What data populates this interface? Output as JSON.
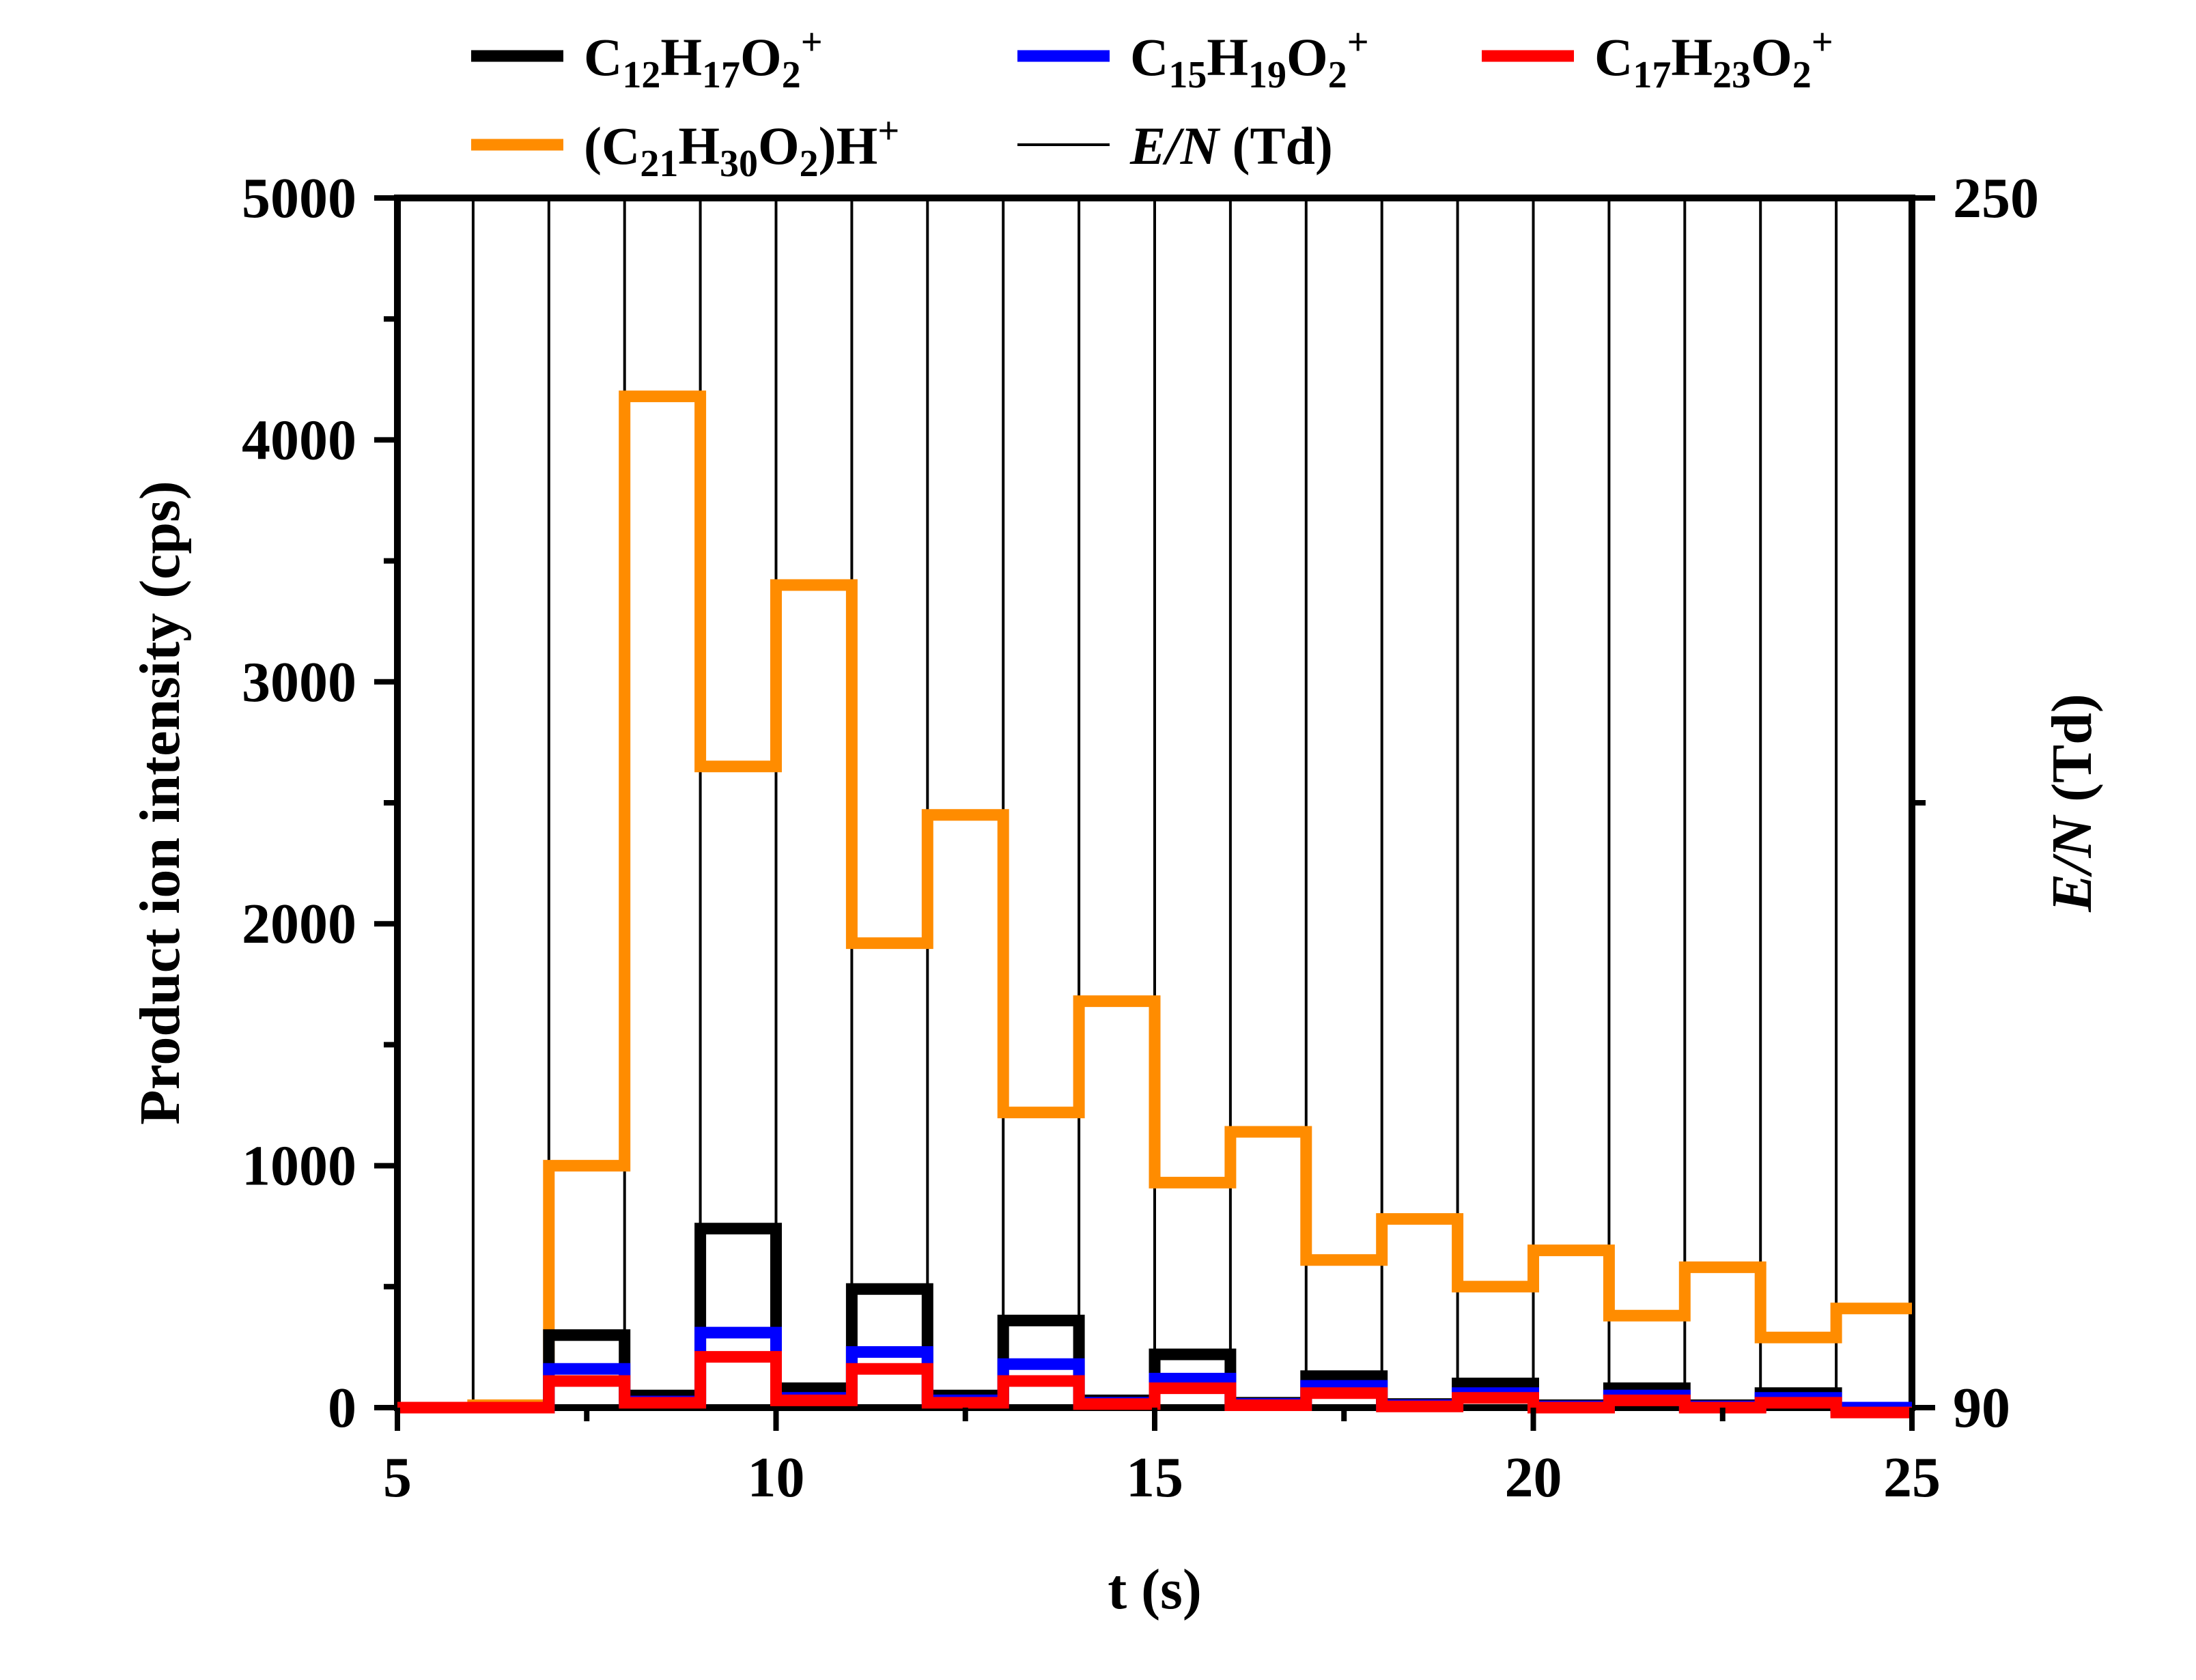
{
  "chart_data": {
    "type": "line",
    "line_shape": "step",
    "xlabel": "t (s)",
    "ylabel_left": "Product ion intensity (cps)",
    "ylabel_right": "E/N (Td)",
    "xlim": [
      5,
      25
    ],
    "ylim_left": [
      0,
      5000
    ],
    "ylim_right": [
      90,
      250
    ],
    "x_ticks": [
      "5",
      "10",
      "15",
      "20",
      "25"
    ],
    "y_ticks_left": [
      "0",
      "1000",
      "2000",
      "3000",
      "4000",
      "5000"
    ],
    "y_ticks_right": [
      "90",
      "250"
    ],
    "grid": false,
    "legend_position": "top",
    "interval_edges": [
      5,
      6,
      7,
      8,
      9,
      10,
      11,
      12,
      13,
      14,
      15,
      16,
      17,
      18,
      19,
      20,
      21,
      22,
      23,
      24,
      25
    ],
    "series": [
      {
        "name": "C12H17O2+",
        "legend": {
          "base": "C",
          "parts": [
            [
              "12",
              "sub"
            ],
            [
              "H",
              "n"
            ],
            [
              "17",
              "sub"
            ],
            [
              "O",
              "n"
            ],
            [
              "2",
              "sub"
            ],
            [
              "+",
              "sup"
            ]
          ]
        },
        "color": "#000000",
        "axis": "left",
        "values": [
          0,
          0,
          300,
          50,
          740,
          80,
          490,
          50,
          360,
          30,
          220,
          20,
          130,
          15,
          100,
          10,
          80,
          10,
          60,
          0
        ]
      },
      {
        "name": "C15H19O2+",
        "legend": {
          "base": "C",
          "parts": [
            [
              "15",
              "sub"
            ],
            [
              "H",
              "n"
            ],
            [
              "19",
              "sub"
            ],
            [
              "O",
              "n"
            ],
            [
              "2",
              "sub"
            ],
            [
              "+",
              "sup"
            ]
          ]
        },
        "color": "#0000ff",
        "axis": "left",
        "values": [
          0,
          0,
          160,
          25,
          310,
          40,
          230,
          30,
          180,
          20,
          120,
          15,
          90,
          10,
          60,
          5,
          50,
          5,
          40,
          0
        ]
      },
      {
        "name": "C17H23O2+",
        "legend": {
          "base": "C",
          "parts": [
            [
              "17",
              "sub"
            ],
            [
              "H",
              "n"
            ],
            [
              "23",
              "sub"
            ],
            [
              "O",
              "n"
            ],
            [
              "2",
              "sub"
            ],
            [
              "+",
              "sup"
            ]
          ]
        },
        "color": "#ff0000",
        "axis": "left",
        "values": [
          0,
          0,
          110,
          20,
          210,
          30,
          160,
          20,
          110,
          15,
          80,
          10,
          60,
          5,
          40,
          0,
          30,
          0,
          20,
          -20
        ]
      },
      {
        "name": "(C21H30O2)H+",
        "legend": {
          "base": "(C",
          "parts": [
            [
              "21",
              "sub"
            ],
            [
              "H",
              "n"
            ],
            [
              "30",
              "sub"
            ],
            [
              "O",
              "n"
            ],
            [
              "2",
              "sub"
            ],
            [
              ")H",
              "n"
            ],
            [
              "+",
              "sup"
            ]
          ]
        },
        "color": "#ff8c00",
        "axis": "left",
        "values": [
          0,
          10,
          1000,
          4180,
          2650,
          3400,
          1920,
          2450,
          1220,
          1680,
          930,
          1140,
          610,
          780,
          500,
          650,
          380,
          580,
          290,
          410
        ]
      },
      {
        "name": "E/N (Td)",
        "legend": {
          "base": "E/N",
          "parts": [
            [
              " (Td)",
              "n"
            ]
          ]
        },
        "color": "#000000",
        "axis": "right",
        "thin": true,
        "values": [
          250,
          90,
          250,
          90,
          250,
          90,
          250,
          90,
          250,
          90,
          250,
          90,
          250,
          90,
          250,
          90,
          250,
          90,
          250,
          90
        ]
      }
    ]
  }
}
